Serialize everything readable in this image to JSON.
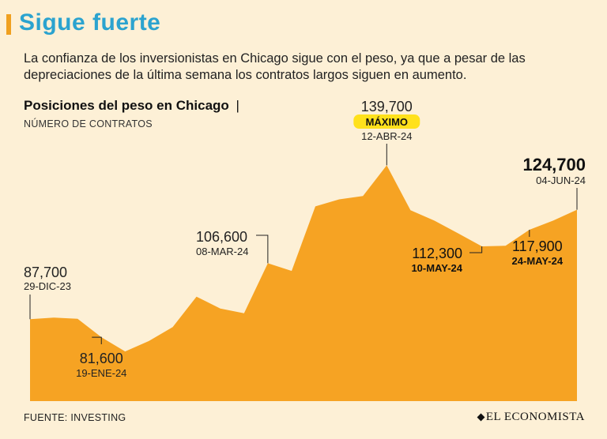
{
  "header": {
    "title": "Sigue fuerte",
    "subtitle": "La confianza de los inversionistas en Chicago sigue con el peso, ya que a pesar de las depreciaciones de la última semana los contratos largos siguen en aumento."
  },
  "chart_data": {
    "type": "area",
    "title": "Posiciones  del peso en Chicago",
    "title_separator": "|",
    "unit_label": "NÚMERO DE CONTRATOS",
    "series": [
      {
        "name": "Posiciones del peso en Chicago",
        "values": [
          87700,
          88200,
          87800,
          81600,
          76800,
          80300,
          85000,
          95300,
          91300,
          89700,
          106600,
          104000,
          125800,
          128200,
          129300,
          139700,
          124500,
          121000,
          116700,
          112300,
          112500,
          117900,
          121000,
          124700
        ]
      }
    ],
    "ylim": [
      60000,
      143000
    ],
    "color": "#f6a323",
    "annotations": [
      {
        "index": 0,
        "value_label": "87,700",
        "date_label": "29-DIC-23"
      },
      {
        "index": 3,
        "value_label": "81,600",
        "date_label": "19-ENE-24"
      },
      {
        "index": 10,
        "value_label": "106,600",
        "date_label": "08-MAR-24"
      },
      {
        "index": 15,
        "value_label": "139,700",
        "badge": "MÁXIMO",
        "date_label": "12-ABR-24"
      },
      {
        "index": 19,
        "value_label": "112,300",
        "date_label": "10-MAY-24"
      },
      {
        "index": 21,
        "value_label": "117,900",
        "date_label": "24-MAY-24"
      },
      {
        "index": 23,
        "value_label": "124,700",
        "date_label": "04-JUN-24"
      }
    ]
  },
  "footer": {
    "source": "FUENTE: INVESTING",
    "brand": "EL ECONOMISTA"
  },
  "colors": {
    "accent": "#f0a01f",
    "title": "#2ba3cf",
    "area": "#f6a323",
    "badge": "#ffe11c"
  }
}
